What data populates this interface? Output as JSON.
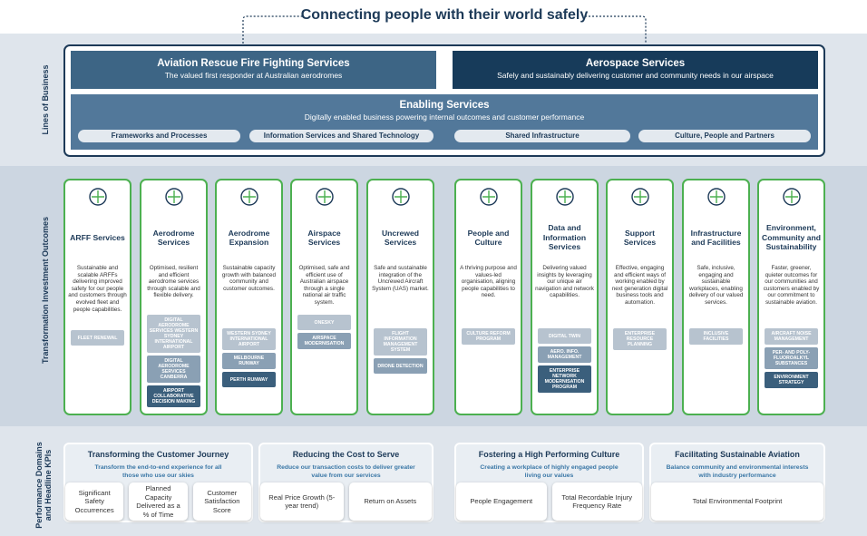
{
  "title": "Connecting people with their world safely",
  "lines_of_business": {
    "label": "Lines of Business",
    "units": [
      {
        "title": "Aviation Rescue Fire Fighting Services",
        "subtitle": "The valued first responder at Australian aerodromes"
      },
      {
        "title": "Aerospace Services",
        "subtitle": "Safely and sustainably delivering customer and community needs in our airspace"
      }
    ],
    "enabling": {
      "title": "Enabling Services",
      "subtitle": "Digitally enabled business powering internal outcomes and customer performance",
      "items": [
        "Frameworks and Processes",
        "Information Services and Shared Technology",
        "Shared Infrastructure",
        "Culture, People and Partners"
      ]
    }
  },
  "outcomes": {
    "label": "Transformation Investment Outcomes",
    "cards": [
      {
        "title": "ARFF Services",
        "description": "Sustainable and scalable ARFFs delivering improved safety for our people and customers through evolved fleet and people capabilities.",
        "programs": [
          "FLEET RENEWAL"
        ]
      },
      {
        "title": "Aerodrome Services",
        "description": "Optimised, resilient and efficient aerodrome services through scalable and flexible delivery.",
        "programs": [
          "DIGITAL AERODROME SERVICES WESTERN SYDNEY INTERNATIONAL AIRPORT",
          "DIGITAL AERODROME SERVICES CANBERRA",
          "AIRPORT COLLABORATIVE DECISION MAKING"
        ]
      },
      {
        "title": "Aerodrome Expansion",
        "description": "Sustainable capacity growth with balanced community and customer outcomes.",
        "programs": [
          "WESTERN SYDNEY INTERNATIONAL AIRPORT",
          "MELBOURNE RUNWAY",
          "PERTH RUNWAY"
        ]
      },
      {
        "title": "Airspace Services",
        "description": "Optimised, safe and efficient use of Australian airspace through a single national air traffic system.",
        "programs": [
          "ONESKY",
          "AIRSPACE MODERNISATION"
        ]
      },
      {
        "title": "Uncrewed Services",
        "description": "Safe and sustainable integration of the Uncrewed Aircraft System (UAS) market.",
        "programs": [
          "FLIGHT INFORMATION MANAGEMENT SYSTEM",
          "DRONE DETECTION"
        ]
      },
      {
        "title": "People and Culture",
        "description": "A thriving purpose and values-led organisation, aligning people capabilities to need.",
        "programs": [
          "CULTURE REFORM PROGRAM"
        ]
      },
      {
        "title": "Data and Information Services",
        "description": "Delivering valued insights by leveraging our unique air navigation and network capabilities.",
        "programs": [
          "DIGITAL TWIN",
          "AERO. INFO. MANAGEMENT",
          "ENTERPRISE NETWORK MODERNISATION PROGRAM"
        ]
      },
      {
        "title": "Support Services",
        "description": "Effective, engaging and efficient ways of working enabled by next generation digital business tools and automation.",
        "programs": [
          "ENTERPRISE RESOURCE PLANNING"
        ]
      },
      {
        "title": "Infrastructure and Facilities",
        "description": "Safe, inclusive, engaging and sustainable workplaces, enabling delivery of our valued services.",
        "programs": [
          "INCLUSIVE FACILITIES"
        ]
      },
      {
        "title": "Environment, Community and Sustainability",
        "description": "Faster, greener, quieter outcomes for our communities and customers enabled by our commitment to sustainable aviation.",
        "programs": [
          "AIRCRAFT NOISE MANAGEMENT",
          "PER- AND POLY-FLUOROALKYL SUBSTANCES",
          "ENVIRONMENT STRATEGY"
        ]
      }
    ]
  },
  "performance": {
    "label": "Performance Domains and Headline KPIs",
    "domains": [
      {
        "title": "Transforming the Customer Journey",
        "subtitle": "Transform the end-to-end experience for all those who use our skies",
        "kpis": [
          "Significant Safety Occurrences",
          "Planned Capacity Delivered as a % of Time",
          "Customer Satisfaction Score"
        ]
      },
      {
        "title": "Reducing the Cost to Serve",
        "subtitle": "Reduce our transaction costs to deliver greater value from our services",
        "kpis": [
          "Real Price Growth (5-year trend)",
          "Return on Assets"
        ]
      },
      {
        "title": "Fostering a High Performing Culture",
        "subtitle": "Creating a workplace of highly engaged people living our values",
        "kpis": [
          "People Engagement",
          "Total Recordable Injury Frequency Rate"
        ]
      },
      {
        "title": "Facilitating Sustainable Aviation",
        "subtitle": "Balance community and environmental interests with industry performance",
        "kpis": [
          "Total Environmental Footprint"
        ]
      }
    ]
  }
}
